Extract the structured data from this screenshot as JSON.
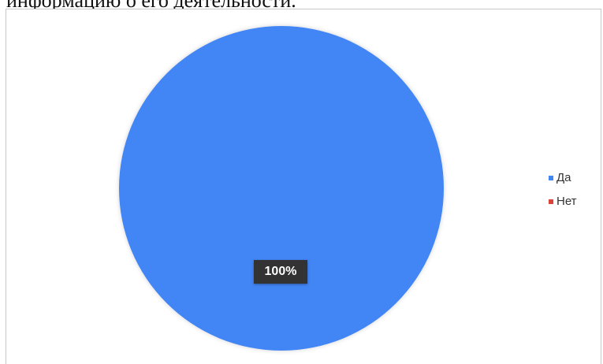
{
  "page": {
    "text_above_chart": "информацию о его деятельности."
  },
  "chart_data": {
    "type": "pie",
    "categories": [
      "Да",
      "Нет"
    ],
    "values": [
      100,
      0
    ],
    "colors": [
      "#4285f4",
      "#db4437"
    ],
    "data_labels": [
      "100%",
      ""
    ],
    "legend": {
      "position": "right",
      "entries": [
        "Да",
        "Нет"
      ]
    }
  }
}
